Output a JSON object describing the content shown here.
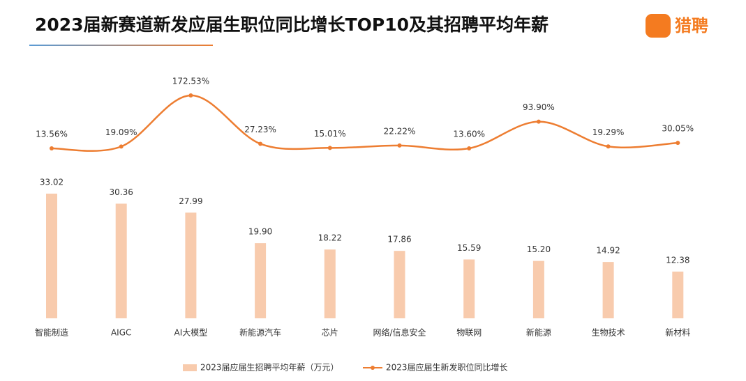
{
  "chart_data": {
    "type": "combo",
    "title": "2023届新赛道新发应届生职位同比增长TOP10及其招聘平均年薪",
    "logo": "猎聘",
    "categories": [
      "智能制造",
      "AIGC",
      "AI大模型",
      "新能源汽车",
      "芯片",
      "网络/信息安全",
      "物联网",
      "新能源",
      "生物技术",
      "新材料"
    ],
    "series": [
      {
        "name": "2023届应届生招聘平均年薪（万元）",
        "type": "bar",
        "color": "#f8cbad",
        "values": [
          33.02,
          30.36,
          27.99,
          19.9,
          18.22,
          17.86,
          15.59,
          15.2,
          14.92,
          12.38
        ],
        "value_labels": [
          "33.02",
          "30.36",
          "27.99",
          "19.90",
          "18.22",
          "17.86",
          "15.59",
          "15.20",
          "14.92",
          "12.38"
        ]
      },
      {
        "name": "2023届应届生新发职位同比增长",
        "type": "line",
        "color": "#ed7d31",
        "values": [
          13.56,
          19.09,
          172.53,
          27.23,
          15.01,
          22.22,
          13.6,
          93.9,
          19.29,
          30.05
        ],
        "value_labels": [
          "13.56%",
          "19.09%",
          "172.53%",
          "27.23%",
          "15.01%",
          "22.22%",
          "13.60%",
          "93.90%",
          "19.29%",
          "30.05%"
        ]
      }
    ]
  }
}
